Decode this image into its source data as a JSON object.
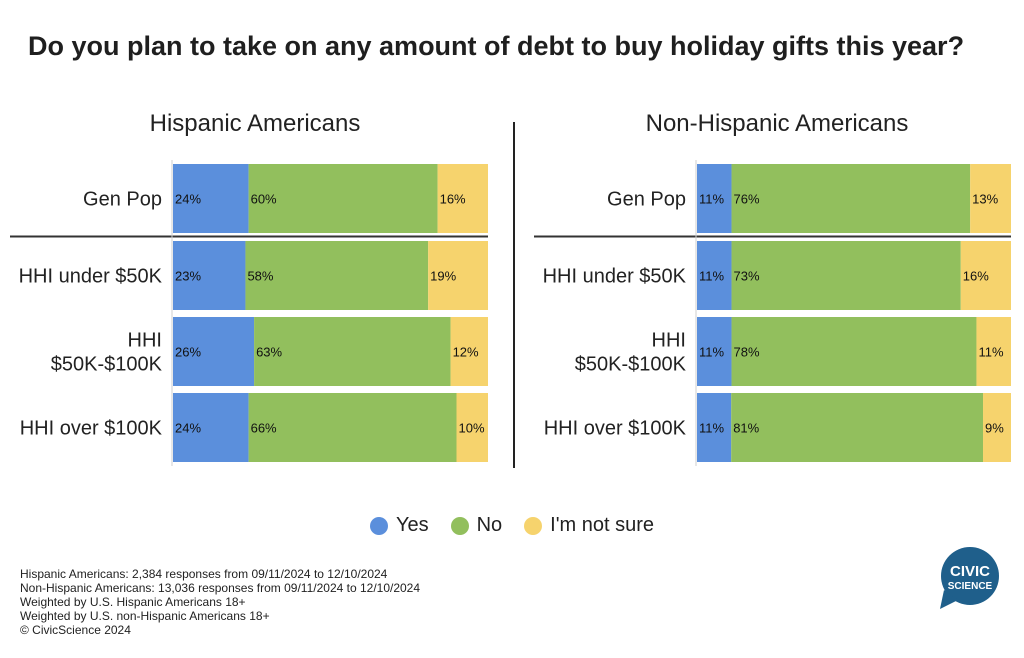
{
  "title": "Do you plan to take on any amount of debt to buy holiday gifts this year?",
  "colors": {
    "yes": "#5b8fdc",
    "no": "#92bf5d",
    "not_sure": "#f6d36d"
  },
  "chart_data": [
    {
      "type": "bar",
      "stacked": true,
      "orientation": "horizontal",
      "title": "Hispanic Americans",
      "categories": [
        "Gen Pop",
        "HHI under $50K",
        "HHI $50K-$100K",
        "HHI over $100K"
      ],
      "series": [
        {
          "name": "Yes",
          "values": [
            24,
            23,
            26,
            24
          ]
        },
        {
          "name": "No",
          "values": [
            60,
            58,
            63,
            66
          ]
        },
        {
          "name": "I'm not sure",
          "values": [
            16,
            19,
            12,
            10
          ]
        }
      ],
      "xlim": [
        0,
        100
      ]
    },
    {
      "type": "bar",
      "stacked": true,
      "orientation": "horizontal",
      "title": "Non-Hispanic Americans",
      "categories": [
        "Gen Pop",
        "HHI under $50K",
        "HHI $50K-$100K",
        "HHI over $100K"
      ],
      "series": [
        {
          "name": "Yes",
          "values": [
            11,
            11,
            11,
            11
          ]
        },
        {
          "name": "No",
          "values": [
            76,
            73,
            78,
            81
          ]
        },
        {
          "name": "I'm not sure",
          "values": [
            13,
            16,
            11,
            9
          ]
        }
      ],
      "xlim": [
        0,
        100
      ]
    }
  ],
  "category_display": [
    [
      "Gen Pop"
    ],
    [
      "HHI under $50K"
    ],
    [
      "HHI",
      "$50K-$100K"
    ],
    [
      "HHI over $100K"
    ]
  ],
  "legend": {
    "placement": "bottom-center",
    "items": [
      {
        "label": "Yes",
        "color": "#5b8fdc"
      },
      {
        "label": "No",
        "color": "#92bf5d"
      },
      {
        "label": "I'm not sure",
        "color": "#f6d36d"
      }
    ]
  },
  "footnotes": [
    "Hispanic Americans: 2,384 responses from 09/11/2024 to 12/10/2024",
    "Non-Hispanic Americans: 13,036 responses from 09/11/2024 to 12/10/2024",
    "Weighted by U.S. Hispanic Americans 18+",
    "Weighted by U.S. non-Hispanic Americans 18+",
    "© CivicScience 2024"
  ],
  "logo": {
    "line1": "CIVIC",
    "line2": "SCIENCE",
    "color": "#1f5f8b"
  }
}
